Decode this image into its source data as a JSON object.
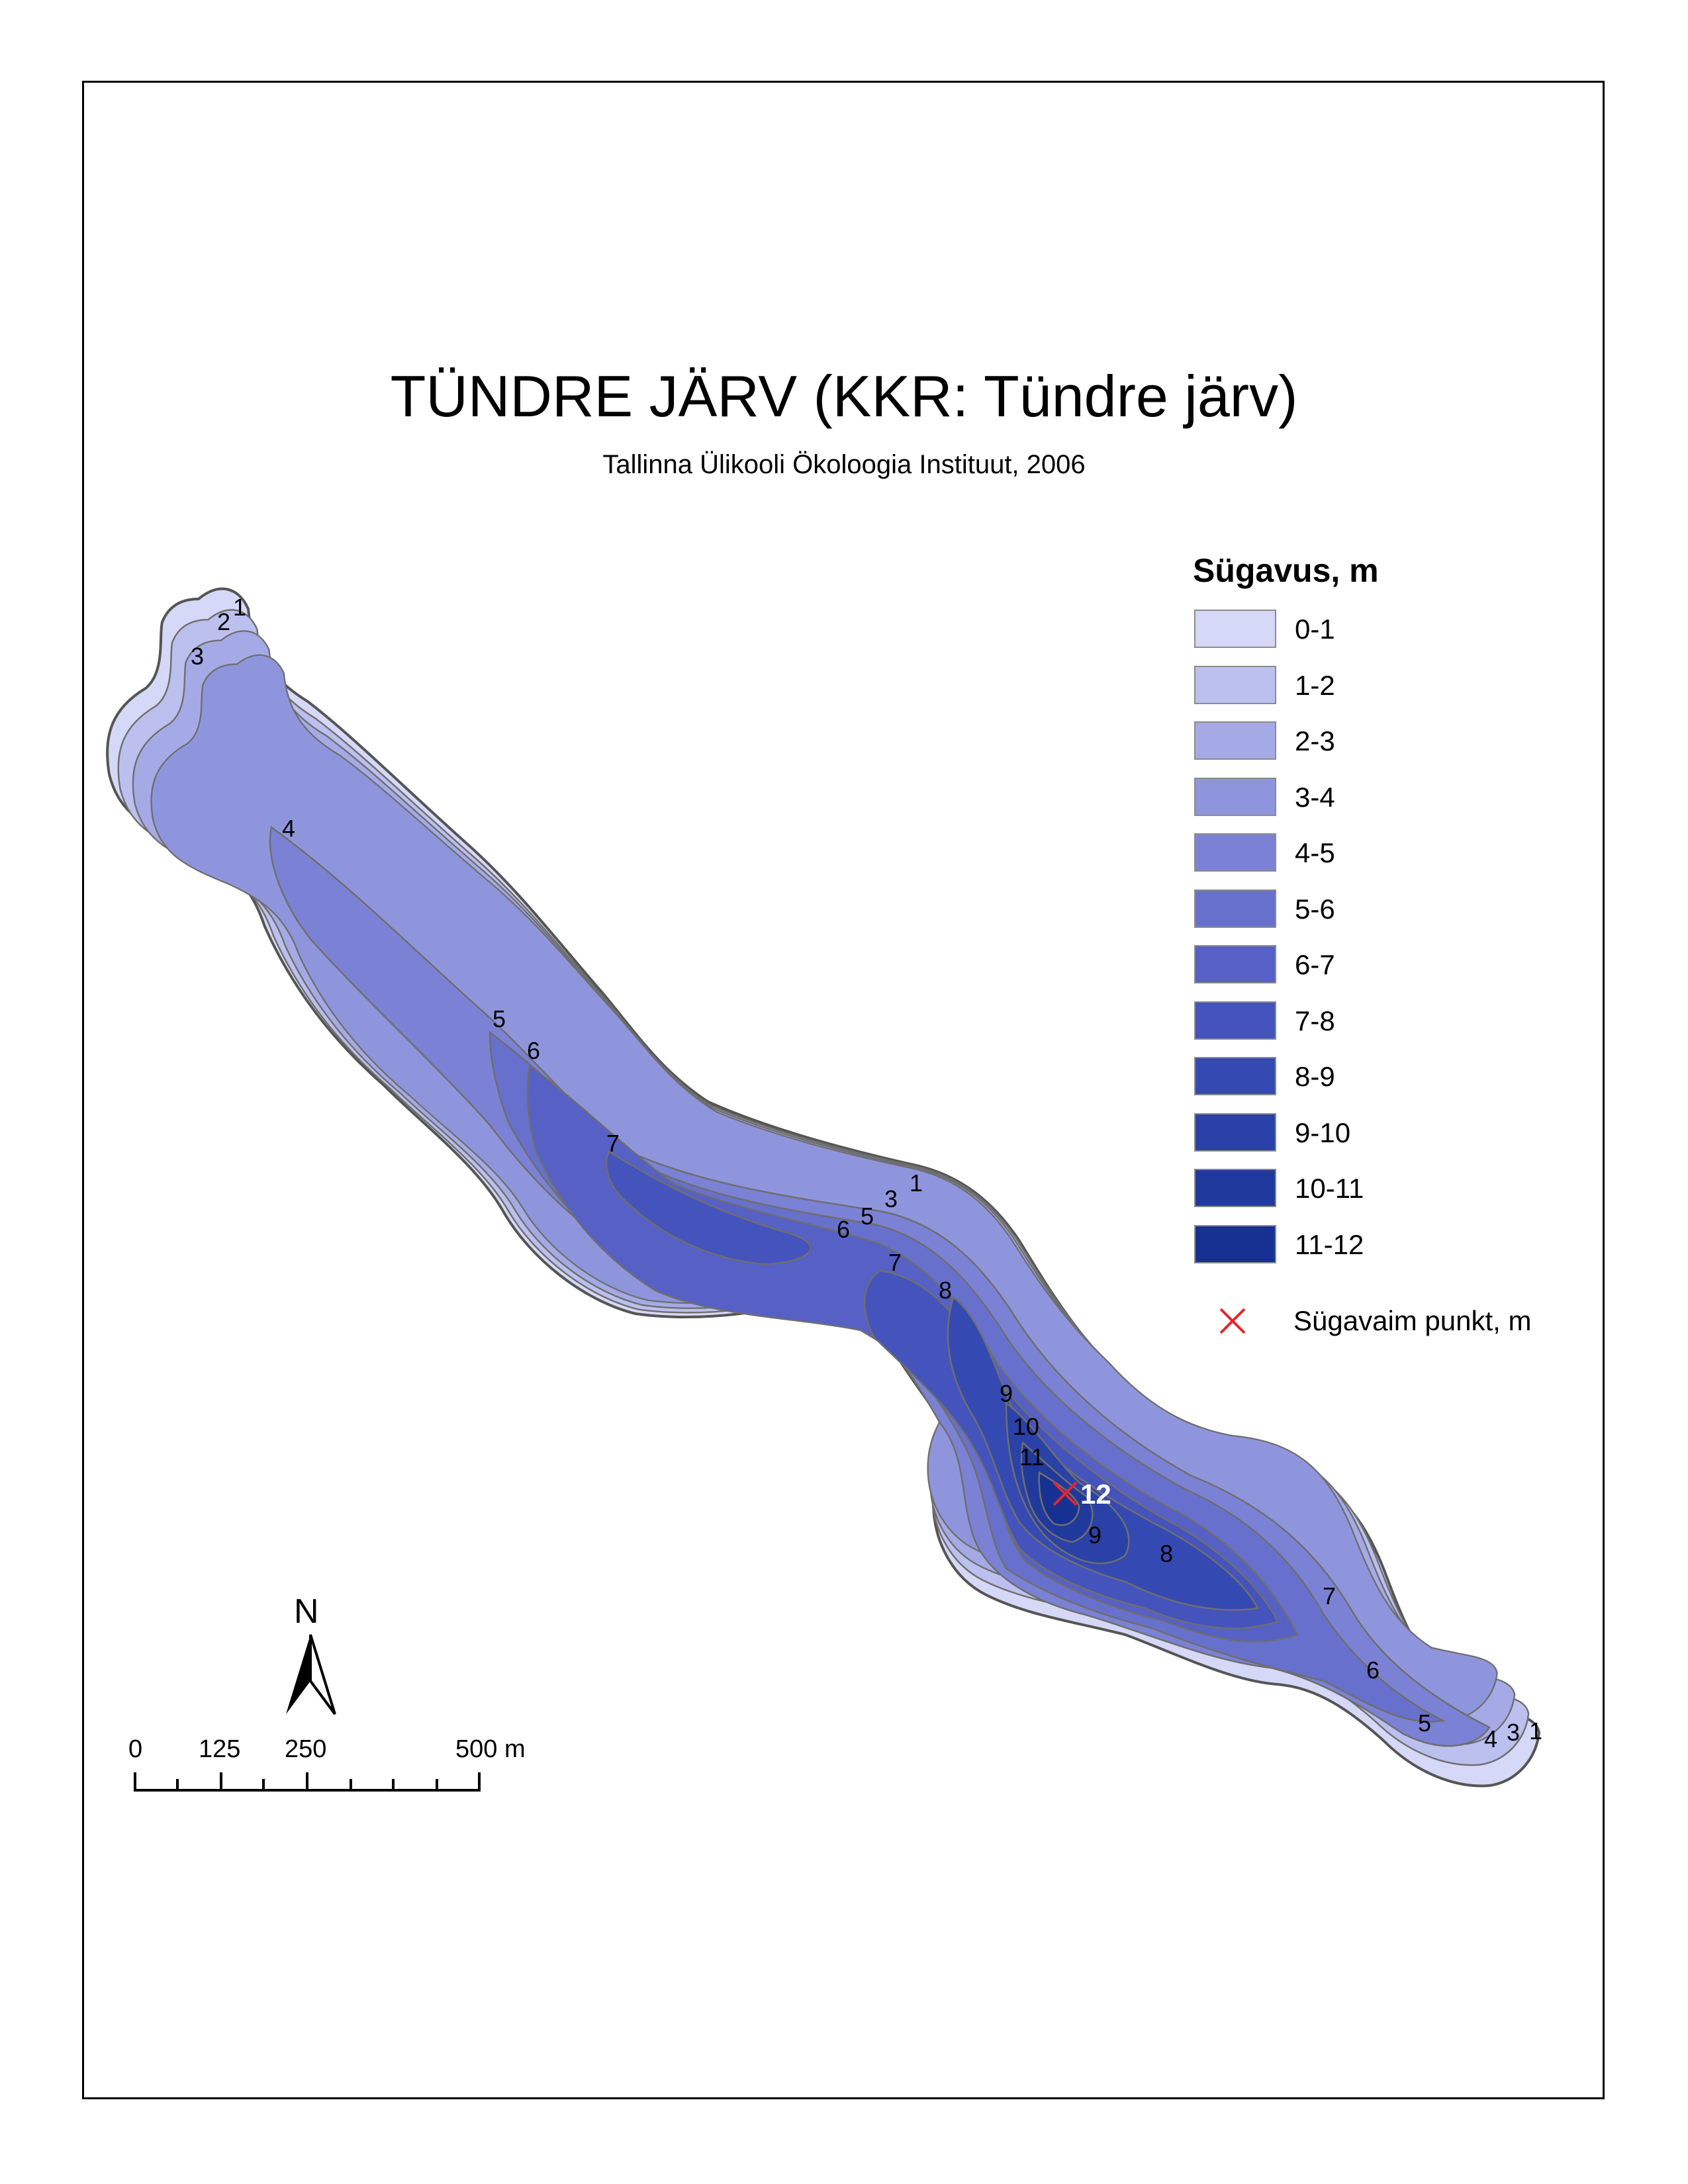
{
  "map": {
    "title": "TÜNDRE JÄRV (KKR: Tündre järv)",
    "subtitle": "Tallinna Ülikooli Ökoloogia Instituut, 2006"
  },
  "legend": {
    "title": "Sügavus, m",
    "classes": [
      {
        "label": "0-1",
        "color": "#d6d8f7"
      },
      {
        "label": "1-2",
        "color": "#bcc0ef"
      },
      {
        "label": "2-3",
        "color": "#a5aae6"
      },
      {
        "label": "3-4",
        "color": "#8f95dd"
      },
      {
        "label": "4-5",
        "color": "#7b82d5"
      },
      {
        "label": "5-6",
        "color": "#6870cd"
      },
      {
        "label": "6-7",
        "color": "#5660c5"
      },
      {
        "label": "7-8",
        "color": "#4553bd"
      },
      {
        "label": "8-9",
        "color": "#3549b2"
      },
      {
        "label": "9-10",
        "color": "#2a41a8"
      },
      {
        "label": "10-11",
        "color": "#20399d"
      },
      {
        "label": "11-12",
        "color": "#173192"
      }
    ],
    "deepest_point_label": "Sügavaim punkt, m",
    "deepest_point_color": "#e8232a"
  },
  "deepest_point": {
    "depth_label": "12"
  },
  "contour_labels": [
    "1",
    "2",
    "3",
    "4",
    "5",
    "6",
    "7",
    "6",
    "5",
    "3",
    "1",
    "7",
    "8",
    "9",
    "10",
    "11",
    "9",
    "8",
    "7",
    "6",
    "5",
    "4",
    "3",
    "1"
  ],
  "north_arrow": {
    "letter": "N",
    "icon": "north-arrow-icon"
  },
  "scale_bar": {
    "labels": [
      "0",
      "125",
      "250",
      "500 m"
    ]
  }
}
